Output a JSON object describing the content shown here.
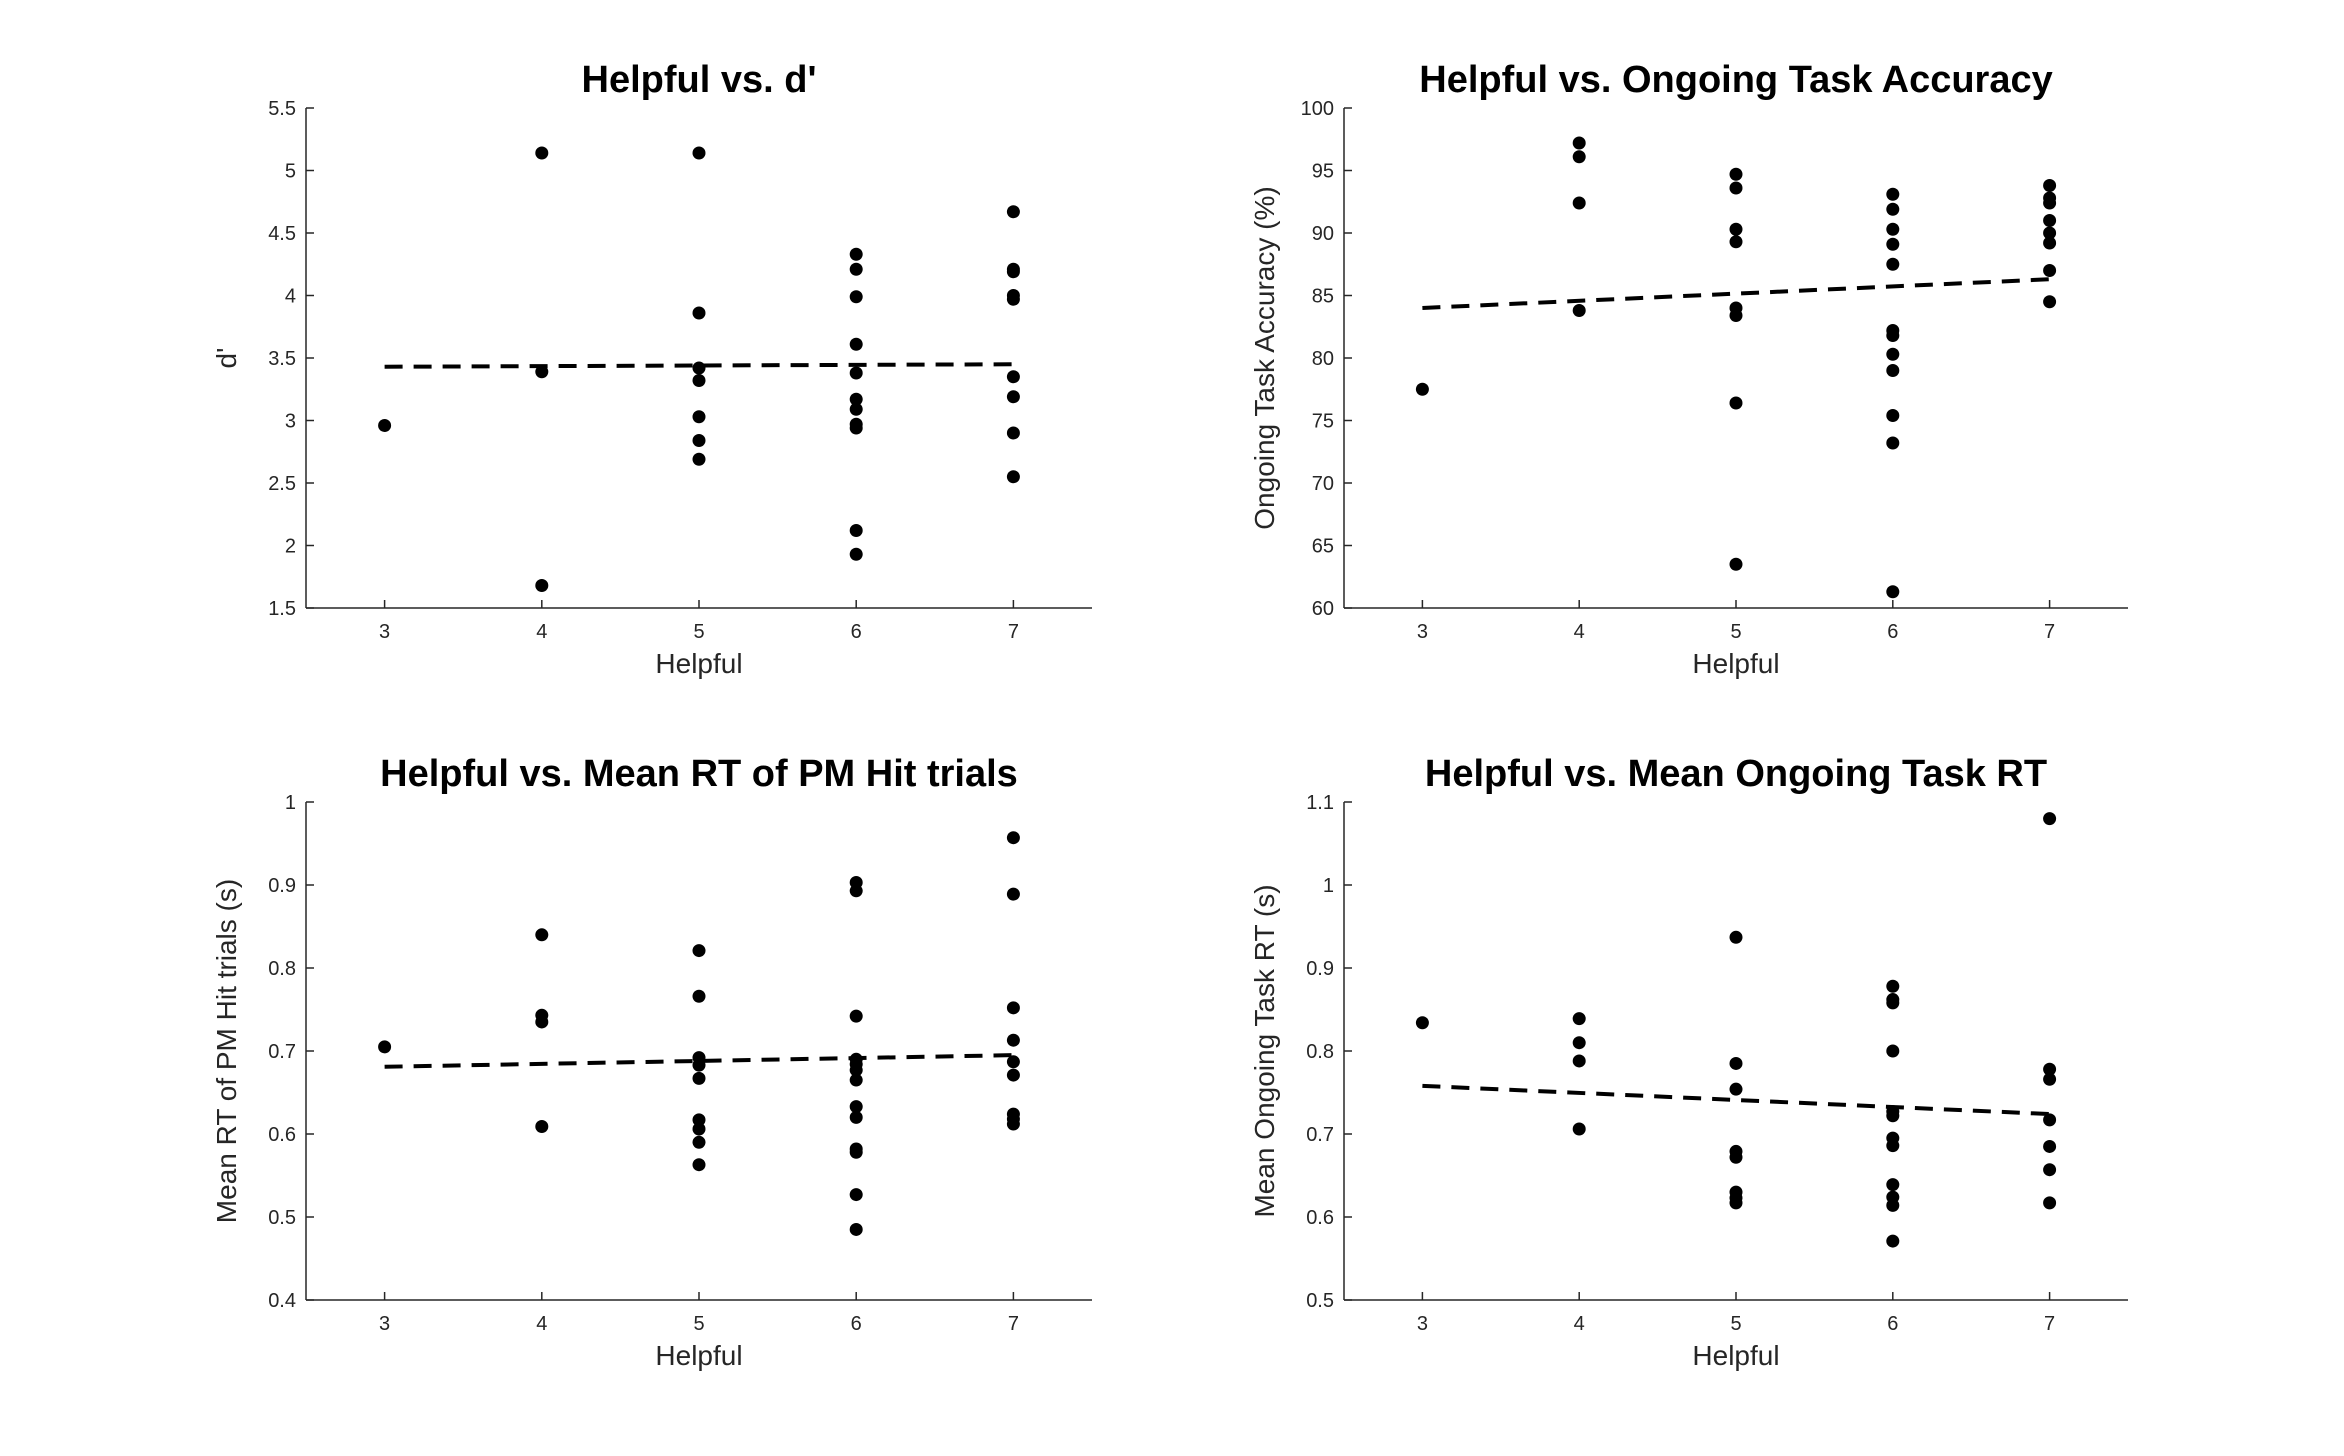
{
  "colors": {
    "points": "#000000",
    "fit_line": "#000000",
    "axes": "#262626"
  },
  "chart_data": [
    {
      "type": "scatter",
      "title": "Helpful vs. d'",
      "xlabel": "Helpful",
      "ylabel": "d'",
      "xlim": [
        2.5,
        7.5
      ],
      "ylim": [
        1.5,
        5.5
      ],
      "xticks": [
        3,
        4,
        5,
        6,
        7
      ],
      "xtick_labels": [
        "3",
        "4",
        "5",
        "6",
        "7"
      ],
      "yticks": [
        1.5,
        2,
        2.5,
        3,
        3.5,
        4,
        4.5,
        5,
        5.5
      ],
      "ytick_labels": [
        "1.5",
        "2",
        "2.5",
        "3",
        "3.5",
        "4",
        "4.5",
        "5",
        "5.5"
      ],
      "points": [
        [
          3,
          2.96
        ],
        [
          4,
          5.14
        ],
        [
          4,
          3.39
        ],
        [
          4,
          1.68
        ],
        [
          5,
          5.14
        ],
        [
          5,
          3.86
        ],
        [
          5,
          3.42
        ],
        [
          5,
          3.32
        ],
        [
          5,
          3.03
        ],
        [
          5,
          2.84
        ],
        [
          5,
          2.69
        ],
        [
          6,
          4.33
        ],
        [
          6,
          4.21
        ],
        [
          6,
          3.99
        ],
        [
          6,
          3.61
        ],
        [
          6,
          3.38
        ],
        [
          6,
          3.17
        ],
        [
          6,
          3.09
        ],
        [
          6,
          2.97
        ],
        [
          6,
          2.94
        ],
        [
          6,
          2.12
        ],
        [
          6,
          1.93
        ],
        [
          7,
          4.67
        ],
        [
          7,
          4.21
        ],
        [
          7,
          4.19
        ],
        [
          7,
          4.0
        ],
        [
          7,
          3.97
        ],
        [
          7,
          3.35
        ],
        [
          7,
          3.19
        ],
        [
          7,
          2.9
        ],
        [
          7,
          2.55
        ]
      ],
      "fit_line": {
        "style": "dashed",
        "x": [
          3,
          7
        ],
        "y": [
          3.43,
          3.45
        ]
      }
    },
    {
      "type": "scatter",
      "title": "Helpful vs. Ongoing Task Accuracy",
      "xlabel": "Helpful",
      "ylabel": "Ongoing Task Accuracy (%)",
      "xlim": [
        2.5,
        7.5
      ],
      "ylim": [
        60,
        100
      ],
      "xticks": [
        3,
        4,
        5,
        6,
        7
      ],
      "xtick_labels": [
        "3",
        "4",
        "5",
        "6",
        "7"
      ],
      "yticks": [
        60,
        65,
        70,
        75,
        80,
        85,
        90,
        95,
        100
      ],
      "ytick_labels": [
        "60",
        "65",
        "70",
        "75",
        "80",
        "85",
        "90",
        "95",
        "100"
      ],
      "points": [
        [
          3,
          77.5
        ],
        [
          4,
          97.2
        ],
        [
          4,
          96.1
        ],
        [
          4,
          92.4
        ],
        [
          4,
          83.8
        ],
        [
          5,
          94.7
        ],
        [
          5,
          93.6
        ],
        [
          5,
          90.3
        ],
        [
          5,
          89.3
        ],
        [
          5,
          84.0
        ],
        [
          5,
          83.4
        ],
        [
          5,
          76.4
        ],
        [
          5,
          63.5
        ],
        [
          6,
          93.1
        ],
        [
          6,
          91.9
        ],
        [
          6,
          90.3
        ],
        [
          6,
          89.1
        ],
        [
          6,
          87.5
        ],
        [
          6,
          82.2
        ],
        [
          6,
          81.8
        ],
        [
          6,
          80.3
        ],
        [
          6,
          79.0
        ],
        [
          6,
          75.4
        ],
        [
          6,
          73.2
        ],
        [
          6,
          61.3
        ],
        [
          7,
          93.8
        ],
        [
          7,
          92.8
        ],
        [
          7,
          92.4
        ],
        [
          7,
          91.0
        ],
        [
          7,
          90.0
        ],
        [
          7,
          89.2
        ],
        [
          7,
          87.0
        ],
        [
          7,
          84.5
        ]
      ],
      "fit_line": {
        "style": "dashed",
        "x": [
          3,
          7
        ],
        "y": [
          84.0,
          86.3
        ]
      }
    },
    {
      "type": "scatter",
      "title": "Helpful vs. Mean RT of PM Hit trials",
      "xlabel": "Helpful",
      "ylabel": "Mean RT of PM Hit trials (s)",
      "xlim": [
        2.5,
        7.5
      ],
      "ylim": [
        0.4,
        1
      ],
      "xticks": [
        3,
        4,
        5,
        6,
        7
      ],
      "xtick_labels": [
        "3",
        "4",
        "5",
        "6",
        "7"
      ],
      "yticks": [
        0.4,
        0.5,
        0.6,
        0.7,
        0.8,
        0.9,
        1
      ],
      "ytick_labels": [
        "0.4",
        "0.5",
        "0.6",
        "0.7",
        "0.8",
        "0.9",
        "1"
      ],
      "points": [
        [
          3,
          0.705
        ],
        [
          4,
          0.84
        ],
        [
          4,
          0.743
        ],
        [
          4,
          0.735
        ],
        [
          4,
          0.609
        ],
        [
          5,
          0.821
        ],
        [
          5,
          0.766
        ],
        [
          5,
          0.692
        ],
        [
          5,
          0.683
        ],
        [
          5,
          0.667
        ],
        [
          5,
          0.617
        ],
        [
          5,
          0.606
        ],
        [
          5,
          0.59
        ],
        [
          5,
          0.563
        ],
        [
          6,
          0.903
        ],
        [
          6,
          0.893
        ],
        [
          6,
          0.742
        ],
        [
          6,
          0.69
        ],
        [
          6,
          0.684
        ],
        [
          6,
          0.677
        ],
        [
          6,
          0.665
        ],
        [
          6,
          0.633
        ],
        [
          6,
          0.62
        ],
        [
          6,
          0.582
        ],
        [
          6,
          0.578
        ],
        [
          6,
          0.527
        ],
        [
          6,
          0.485
        ],
        [
          7,
          0.957
        ],
        [
          7,
          0.889
        ],
        [
          7,
          0.752
        ],
        [
          7,
          0.713
        ],
        [
          7,
          0.687
        ],
        [
          7,
          0.671
        ],
        [
          7,
          0.624
        ],
        [
          7,
          0.618
        ],
        [
          7,
          0.612
        ]
      ],
      "fit_line": {
        "style": "dashed",
        "x": [
          3,
          7
        ],
        "y": [
          0.681,
          0.695
        ]
      }
    },
    {
      "type": "scatter",
      "title": "Helpful vs. Mean Ongoing Task RT",
      "xlabel": "Helpful",
      "ylabel": "Mean Ongoing Task RT (s)",
      "xlim": [
        2.5,
        7.5
      ],
      "ylim": [
        0.5,
        1.1
      ],
      "xticks": [
        3,
        4,
        5,
        6,
        7
      ],
      "xtick_labels": [
        "3",
        "4",
        "5",
        "6",
        "7"
      ],
      "yticks": [
        0.5,
        0.6,
        0.7,
        0.8,
        0.9,
        1,
        1.1
      ],
      "ytick_labels": [
        "0.5",
        "0.6",
        "0.7",
        "0.8",
        "0.9",
        "1",
        "1.1"
      ],
      "points": [
        [
          3,
          0.834
        ],
        [
          4,
          0.839
        ],
        [
          4,
          0.81
        ],
        [
          4,
          0.788
        ],
        [
          4,
          0.706
        ],
        [
          5,
          0.937
        ],
        [
          5,
          0.785
        ],
        [
          5,
          0.754
        ],
        [
          5,
          0.679
        ],
        [
          5,
          0.672
        ],
        [
          5,
          0.63
        ],
        [
          5,
          0.623
        ],
        [
          5,
          0.617
        ],
        [
          6,
          0.878
        ],
        [
          6,
          0.862
        ],
        [
          6,
          0.858
        ],
        [
          6,
          0.8
        ],
        [
          6,
          0.727
        ],
        [
          6,
          0.722
        ],
        [
          6,
          0.695
        ],
        [
          6,
          0.686
        ],
        [
          6,
          0.639
        ],
        [
          6,
          0.624
        ],
        [
          6,
          0.614
        ],
        [
          6,
          0.571
        ],
        [
          7,
          1.08
        ],
        [
          7,
          0.778
        ],
        [
          7,
          0.766
        ],
        [
          7,
          0.717
        ],
        [
          7,
          0.685
        ],
        [
          7,
          0.657
        ],
        [
          7,
          0.617
        ]
      ],
      "fit_line": {
        "style": "dashed",
        "x": [
          3,
          7
        ],
        "y": [
          0.758,
          0.724
        ]
      }
    }
  ]
}
